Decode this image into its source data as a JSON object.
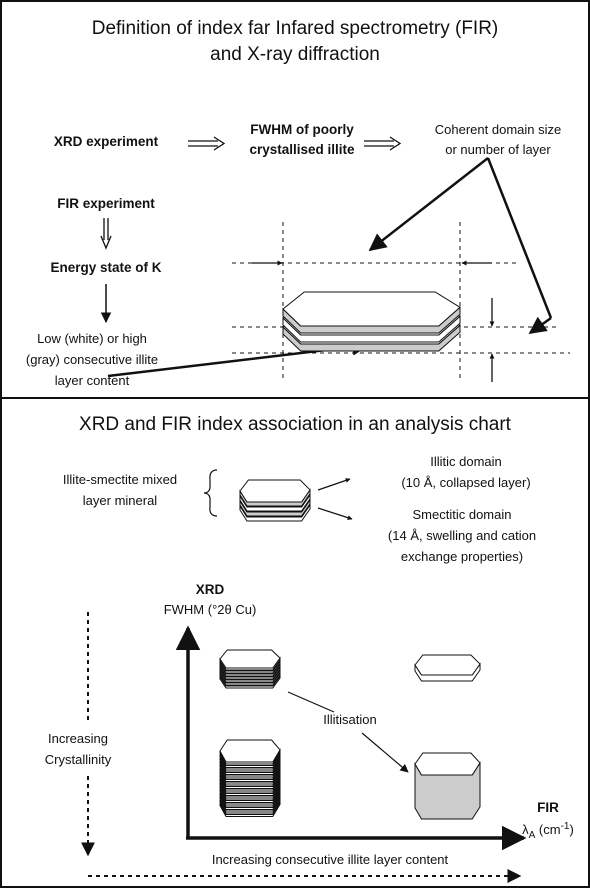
{
  "top": {
    "title": [
      "Definition of index far Infared spectrometry (FIR)",
      "and X-ray diffraction"
    ],
    "xrd_experiment": "XRD experiment",
    "fwhm": [
      "FWHM of poorly",
      "crystallised illite"
    ],
    "coherent": [
      "Coherent domain size",
      "or number of layer"
    ],
    "fir_experiment": "FIR experiment",
    "energy_state": "Energy state of K",
    "content": [
      "Low (white) or high",
      "(gray) consecutive illite",
      "layer content"
    ]
  },
  "bottom": {
    "title": "XRD and FIR index association in an analysis chart",
    "mineral": [
      "Illite-smectite mixed",
      "layer mineral"
    ],
    "illitic": [
      "Illitic domain",
      "(10 Å, collapsed layer)"
    ],
    "smectitic": [
      "Smectitic domain",
      "(14 Å, swelling and cation",
      "exchange properties)"
    ],
    "xrd": "XRD",
    "fwhm_unit": "FWHM (°2θ Cu)",
    "illitisation": "Illitisation",
    "crystallinity": [
      "Increasing",
      "Crystallinity"
    ],
    "layer_content": "Increasing consecutive illite layer content",
    "fir": "FIR",
    "fir_unit": {
      "symbol": "λ",
      "sub": "A",
      "open": " (cm",
      "sup": "-1",
      "close": ")"
    }
  }
}
